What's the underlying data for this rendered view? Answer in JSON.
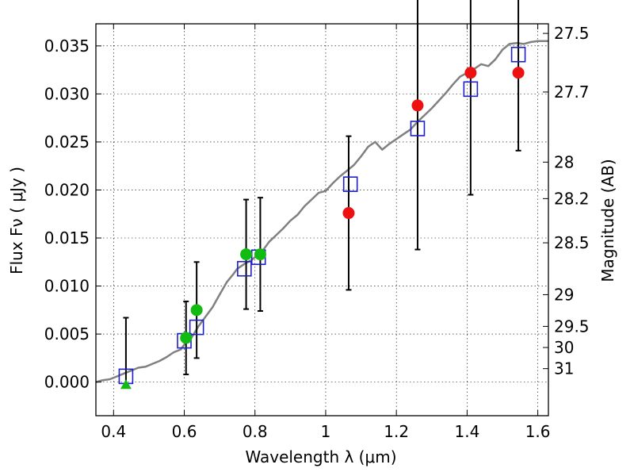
{
  "chart_data": {
    "type": "scatter",
    "xlabel": "Wavelength  λ (μm)",
    "ylabel_left": "Flux  Fν  ( μJy )",
    "ylabel_right": "Magnitude (AB)",
    "xlim": [
      0.35,
      1.63
    ],
    "ylim": [
      -0.0035,
      0.0373
    ],
    "grid": true,
    "x_ticks": [
      0.4,
      0.6,
      0.8,
      1.0,
      1.2,
      1.4,
      1.6
    ],
    "x_tick_labels": [
      "0.4",
      "0.6",
      "0.8",
      "1",
      "1.2",
      "1.4",
      "1.6"
    ],
    "y_ticks": [
      0.0,
      0.005,
      0.01,
      0.015,
      0.02,
      0.025,
      0.03,
      0.035
    ],
    "y_tick_labels": [
      "0.000",
      "0.005",
      "0.010",
      "0.015",
      "0.020",
      "0.025",
      "0.030",
      "0.035"
    ],
    "mag_ticks": [
      {
        "label": "27.5",
        "flux": 0.0363
      },
      {
        "label": "27.7",
        "flux": 0.0302
      },
      {
        "label": "28",
        "flux": 0.0229
      },
      {
        "label": "28.2",
        "flux": 0.0191
      },
      {
        "label": "28.5",
        "flux": 0.0145
      },
      {
        "label": "29",
        "flux": 0.0091
      },
      {
        "label": "29.5",
        "flux": 0.0058
      },
      {
        "label": "30",
        "flux": 0.0036
      },
      {
        "label": "31",
        "flux": 0.0014
      }
    ],
    "template_spectrum": {
      "name": "",
      "color": "#808080",
      "x": [
        0.35,
        0.37,
        0.39,
        0.41,
        0.43,
        0.45,
        0.47,
        0.49,
        0.51,
        0.53,
        0.55,
        0.57,
        0.59,
        0.6,
        0.62,
        0.63,
        0.64,
        0.66,
        0.68,
        0.7,
        0.72,
        0.74,
        0.75,
        0.77,
        0.79,
        0.8,
        0.82,
        0.84,
        0.86,
        0.88,
        0.9,
        0.92,
        0.94,
        0.96,
        0.98,
        1.0,
        1.02,
        1.04,
        1.06,
        1.08,
        1.1,
        1.12,
        1.14,
        1.16,
        1.18,
        1.2,
        1.22,
        1.24,
        1.26,
        1.28,
        1.3,
        1.32,
        1.34,
        1.36,
        1.38,
        1.4,
        1.42,
        1.44,
        1.46,
        1.48,
        1.5,
        1.52,
        1.54,
        1.56,
        1.58,
        1.6,
        1.63
      ],
      "y": [
        0.0,
        0.0002,
        0.0003,
        0.0006,
        0.0009,
        0.0012,
        0.0015,
        0.0016,
        0.0019,
        0.0022,
        0.0026,
        0.0031,
        0.0034,
        0.0039,
        0.0046,
        0.0052,
        0.0058,
        0.0068,
        0.0078,
        0.0091,
        0.0104,
        0.0113,
        0.0118,
        0.0123,
        0.0127,
        0.013,
        0.0136,
        0.0146,
        0.0153,
        0.016,
        0.0168,
        0.0174,
        0.0183,
        0.019,
        0.0197,
        0.0199,
        0.0207,
        0.0214,
        0.022,
        0.0226,
        0.0235,
        0.0245,
        0.025,
        0.0242,
        0.0248,
        0.0253,
        0.0258,
        0.0263,
        0.0271,
        0.0278,
        0.0285,
        0.0293,
        0.0301,
        0.031,
        0.0318,
        0.0322,
        0.0326,
        0.0331,
        0.0329,
        0.0336,
        0.0346,
        0.0352,
        0.0353,
        0.0352,
        0.0354,
        0.0355,
        0.0355
      ]
    },
    "model_points": {
      "marker": "open-square",
      "color": "#1f1fc8",
      "x": [
        0.435,
        0.6,
        0.635,
        0.77,
        0.81,
        1.07,
        1.26,
        1.41,
        1.545
      ],
      "y": [
        0.0006,
        0.0043,
        0.0057,
        0.0118,
        0.013,
        0.0206,
        0.0264,
        0.0305,
        0.0341
      ]
    },
    "measured_points": {
      "marker": "filled-circle",
      "color": "#ee1111",
      "x": [
        1.065,
        1.26,
        1.41,
        1.545
      ],
      "y": [
        0.0176,
        0.0288,
        0.0322,
        0.0322
      ],
      "err": [
        0.008,
        0.015,
        0.0127,
        0.0081
      ]
    },
    "measured_points_optical": {
      "marker": "filled-circle",
      "color": "#11bb11",
      "x": [
        0.605,
        0.635,
        0.775,
        0.815
      ],
      "y": [
        0.0046,
        0.0075,
        0.0133,
        0.0133
      ],
      "err": [
        0.0038,
        0.005,
        0.0057,
        0.0059
      ]
    },
    "upper_limit": {
      "marker": "triangle",
      "color": "#11bb11",
      "x": 0.435,
      "y": -0.0003,
      "err_top": 0.0067
    }
  }
}
